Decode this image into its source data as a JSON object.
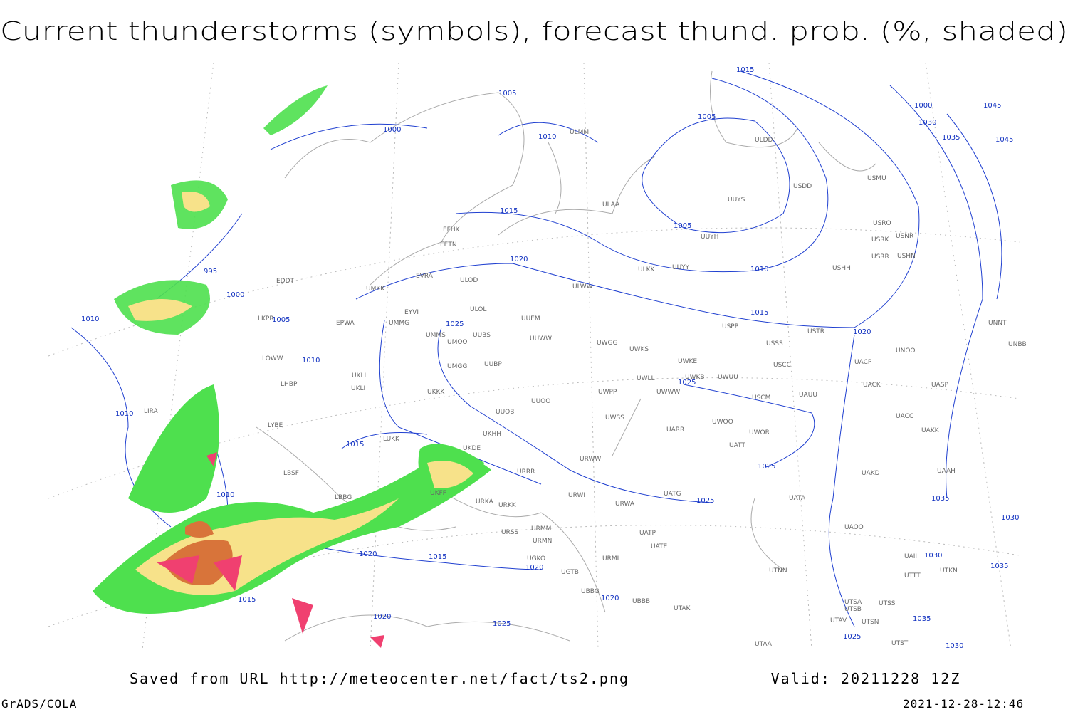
{
  "header": {
    "title": "Current thunderstorms (symbols), forecast thund. prob. (%, shaded)"
  },
  "stations": [
    "ULMM",
    "ULDD",
    "USDD",
    "USMU",
    "ULAA",
    "UUYS",
    "UUYH",
    "USRO",
    "USRK",
    "USNR",
    "USRR",
    "USHN",
    "USHH",
    "ULKK",
    "UUYY",
    "EFHK",
    "EETN",
    "EVRA",
    "ULOD",
    "EDDT",
    "UMKK",
    "ULWW",
    "ULOL",
    "UUEM",
    "EPWA",
    "UMMG",
    "LKPR",
    "EYVI",
    "UMMS",
    "UMOO",
    "UUBS",
    "UUWW",
    "UWGG",
    "UWKS",
    "USPP",
    "USTR",
    "USSS",
    "UNNT",
    "UNBB",
    "UMGG",
    "UUBP",
    "UWKE",
    "USCC",
    "UACP",
    "UNOO",
    "LOWW",
    "UKLL",
    "UKLI",
    "UWLL",
    "UWKB",
    "UWUU",
    "USCM",
    "UAUU",
    "UACK",
    "UASP",
    "LHBP",
    "UKKK",
    "UWWW",
    "UWPP",
    "UUOO",
    "UUOB",
    "UWSS",
    "LIRA",
    "LYBE",
    "UARR",
    "UWOO",
    "UWOR",
    "UACC",
    "UAKK",
    "UKHH",
    "UKDE",
    "URWW",
    "UATT",
    "LBSF",
    "LUKK",
    "URRR",
    "UAKD",
    "UAAH",
    "LBBG",
    "UKFF",
    "URKA",
    "URKK",
    "URWI",
    "UATG",
    "URWA",
    "UATA",
    "UAOO",
    "URSS",
    "URMM",
    "URMN",
    "UATP",
    "UATE",
    "URML",
    "UGKO",
    "UGTB",
    "UBBG",
    "UBBB",
    "UTAK",
    "UTNN",
    "UTSA",
    "UTSB",
    "UTSS",
    "UTAV",
    "UTSN",
    "UTAA",
    "UTST",
    "UAII",
    "UTKN",
    "UTTT"
  ],
  "isobar_labels": [
    "1015",
    "1005",
    "1000",
    "1010",
    "1005",
    "1030",
    "1035",
    "1045",
    "1045",
    "1000",
    "1015",
    "1005",
    "1020",
    "1010",
    "995",
    "1000",
    "1010",
    "1005",
    "1015",
    "1020",
    "1025",
    "1010",
    "1025",
    "1010",
    "1015",
    "1025",
    "1010",
    "1025",
    "1035",
    "1030",
    "1020",
    "1015",
    "1020",
    "1030",
    "1035",
    "1015",
    "1020",
    "1020",
    "1025",
    "1025",
    "1030",
    "1035"
  ],
  "footer": {
    "source": "Saved from URL http://meteocenter.net/fact/ts2.png",
    "valid": "Valid: 20211228 12Z",
    "software": "GrADS/COLA",
    "timestamp": "2021-12-28-12:46"
  }
}
